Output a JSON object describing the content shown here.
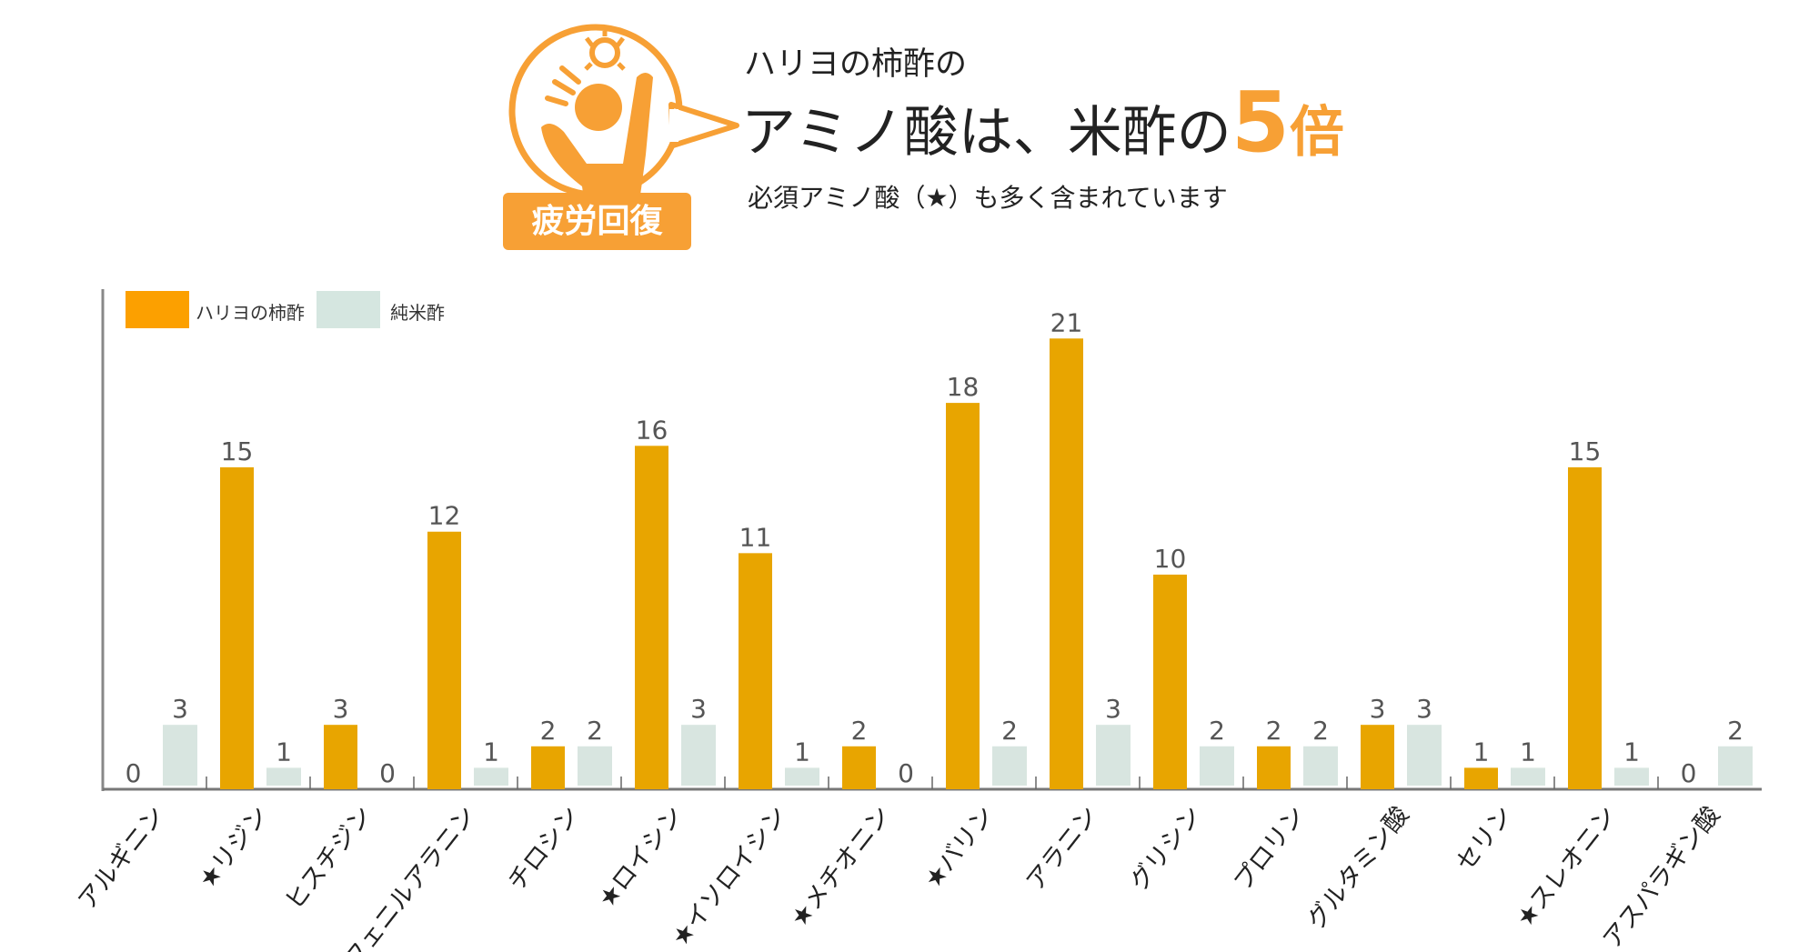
{
  "header": {
    "badge": "疲労回復",
    "supertitle": "ハリヨの柿酢の",
    "title_main": "アミノ酸は、米酢の",
    "title_number": "5",
    "title_suffix": "倍",
    "subtitle": "必須アミノ酸（★）も多く含まれています"
  },
  "colors": {
    "accent": "#F7A035",
    "series_kaki": "#E8A500",
    "legend_kaki": "#FCA000",
    "series_kome": "#D8E5E0"
  },
  "chart_data": {
    "type": "bar",
    "title": "",
    "xlabel": "",
    "ylabel": "",
    "ylim": [
      0,
      23.3
    ],
    "grid": false,
    "legend_placement": "top-left",
    "categories": [
      "アルギニン",
      "★リジン",
      "ヒスチジン",
      "★フェニルアラニン",
      "チロシン",
      "★ロイシン",
      "★イソロイシン",
      "★メチオニン",
      "★バリン",
      "アラニン",
      "グリシン",
      "プロリン",
      "グルタミン酸",
      "セリン",
      "★スレオニン",
      "アスパラギン酸"
    ],
    "series": [
      {
        "name": "ハリヨの柿酢",
        "values": [
          0,
          15,
          3,
          12,
          2,
          16,
          11,
          2,
          18,
          21,
          10,
          2,
          3,
          1,
          15,
          0
        ]
      },
      {
        "name": "純米酢",
        "values": [
          3,
          1,
          0,
          1,
          2,
          3,
          1,
          0,
          2,
          3,
          2,
          2,
          3,
          1,
          1,
          2
        ]
      }
    ]
  }
}
